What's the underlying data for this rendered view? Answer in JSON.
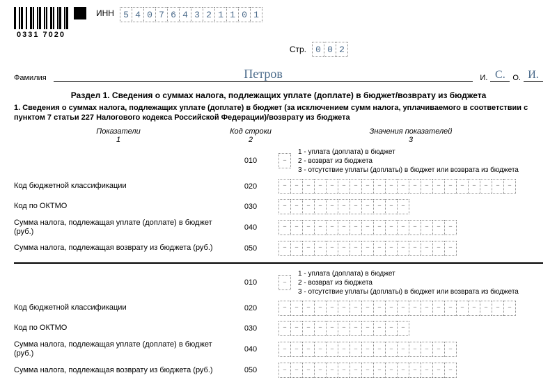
{
  "barcode_number": "0331 7020",
  "inn": {
    "label": "ИНН",
    "digits": [
      "5",
      "4",
      "0",
      "7",
      "6",
      "4",
      "3",
      "2",
      "1",
      "1",
      "0",
      "1"
    ]
  },
  "page": {
    "label": "Стр.",
    "digits": [
      "0",
      "0",
      "2"
    ]
  },
  "name": {
    "label": "Фамилия",
    "value": "Петров",
    "i_label": "И.",
    "i_value": "С.",
    "o_label": "О.",
    "o_value": "И."
  },
  "section_title": "Раздел 1. Сведения о суммах налога, подлежащих уплате (доплате) в бюджет/возврату из бюджета",
  "section_sub": "1. Сведения о суммах налога, подлежащих уплате (доплате) в бюджет (за исключением сумм налога, уплачиваемого в соответствии с пунктом 7 статьи 227 Налогового кодекса Российской Федерации)/возврату из бюджета",
  "cols": {
    "c1": "Показатели",
    "c2": "Код строки",
    "c3": "Значения показателей",
    "n1": "1",
    "n2": "2",
    "n3": "3"
  },
  "legend": {
    "l1": "1 - уплата (доплата) в бюджет",
    "l2": "2 - возврат из бюджета",
    "l3": "3 - отсутствие уплаты (доплаты) в бюджет или возврата из бюджета"
  },
  "rows": {
    "r010": "010",
    "r020": {
      "label": "Код бюджетной классификации",
      "code": "020",
      "cells": 20
    },
    "r030": {
      "label": "Код по ОКТМО",
      "code": "030",
      "cells": 11
    },
    "r040": {
      "label": "Сумма налога, подлежащая уплате (доплате) в бюджет (руб.)",
      "code": "040",
      "cells": 15
    },
    "r050": {
      "label": "Сумма налога, подлежащая возврату из бюджета (руб.)",
      "code": "050",
      "cells": 15
    }
  },
  "colors": {
    "ink": "#4a6a8a",
    "border": "#888888"
  }
}
